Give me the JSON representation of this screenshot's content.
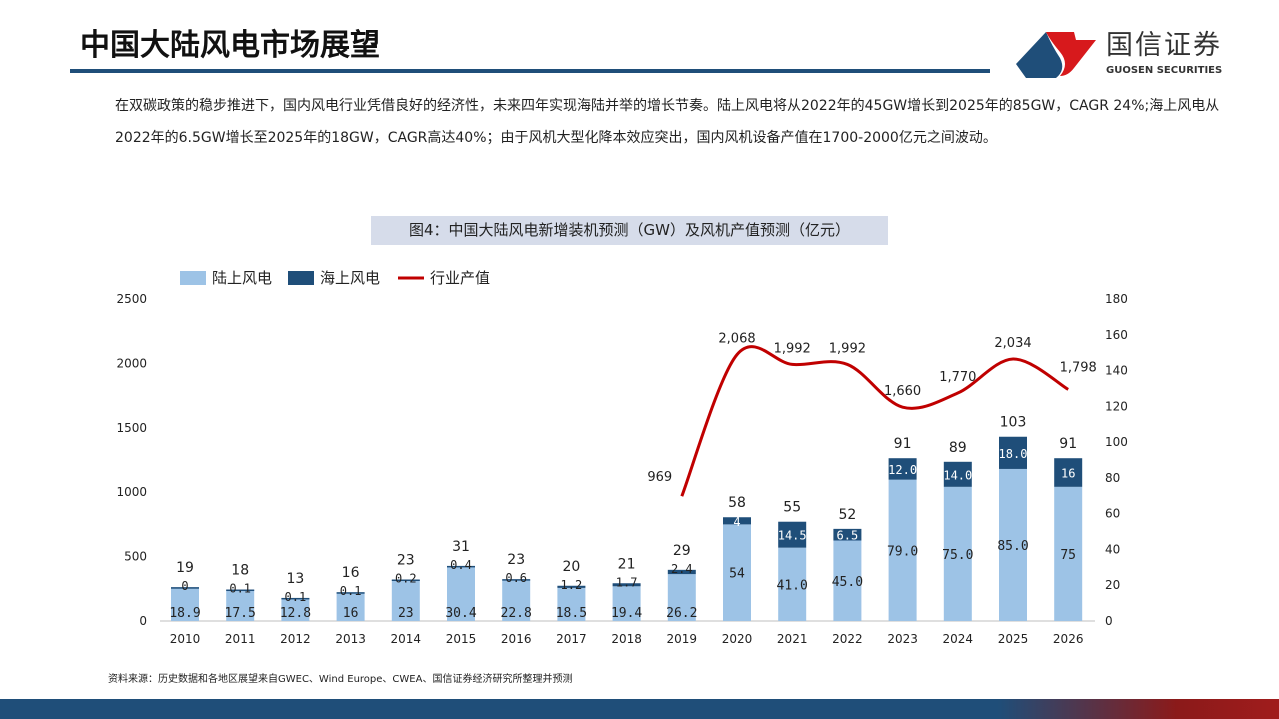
{
  "header": {
    "title": "中国大陆风电市场展望",
    "logo_cn": "国信证券",
    "logo_en": "GUOSEN SECURITIES"
  },
  "intro": "在双碳政策的稳步推进下，国内风电行业凭借良好的经济性，未来四年实现海陆并举的增长节奏。陆上风电将从2022年的45GW增长到2025年的85GW，CAGR 24%;海上风电从2022年的6.5GW增长至2025年的18GW，CAGR高达40%；由于风机大型化降本效应突出，国内风机设备产值在1700-2000亿元之间波动。",
  "source": "资料来源：历史数据和各地区展望来自GWEC、Wind Europe、CWEA、国信证券经济研究所整理并预测",
  "chart_data": {
    "type": "bar+line",
    "title": "图4：中国大陆风电新增装机预测（GW）及风机产值预测（亿元）",
    "categories": [
      "2010",
      "2011",
      "2012",
      "2013",
      "2014",
      "2015",
      "2016",
      "2017",
      "2018",
      "2019",
      "2020",
      "2021",
      "2022",
      "2023",
      "2024",
      "2025",
      "2026"
    ],
    "series": [
      {
        "name": "陆上风电",
        "type": "stacked-bar",
        "axis": "right",
        "color": "#9dc3e6",
        "values": [
          18.9,
          17.5,
          12.8,
          16,
          23,
          30.4,
          22.8,
          18.5,
          19.4,
          26.2,
          54,
          41.0,
          45.0,
          79.0,
          75.0,
          85.0,
          75
        ],
        "labels": [
          "18.9",
          "17.5",
          "12.8",
          "16",
          "23",
          "30.4",
          "22.8",
          "18.5",
          "19.4",
          "26.2",
          "54",
          "41.0",
          "45.0",
          "79.0",
          "75.0",
          "85.0",
          "75"
        ]
      },
      {
        "name": "海上风电",
        "type": "stacked-bar",
        "axis": "right",
        "color": "#1f4e79",
        "values": [
          0,
          0.1,
          0.1,
          0.1,
          0.2,
          0.4,
          0.6,
          1.2,
          1.7,
          2.4,
          4,
          14.5,
          6.5,
          12.0,
          14.0,
          18.0,
          16
        ],
        "labels": [
          "0",
          "0.1",
          "0.1",
          "0.1",
          "0.2",
          "0.4",
          "0.6",
          "1.2",
          "1.7",
          "2.4",
          "4",
          "14.5",
          "6.5",
          "12.0",
          "14.0",
          "18.0",
          "16"
        ]
      },
      {
        "name": "行业产值",
        "type": "line",
        "axis": "left",
        "color": "#c00000",
        "values": [
          null,
          null,
          null,
          null,
          null,
          null,
          null,
          null,
          null,
          969,
          2068,
          1992,
          1992,
          1660,
          1770,
          2034,
          1798
        ],
        "labels": [
          "",
          "",
          "",
          "",
          "",
          "",
          "",
          "",
          "",
          "969",
          "2,068",
          "1,992",
          "1,992",
          "1,660",
          "1,770",
          "2,034",
          "1,798"
        ]
      }
    ],
    "totals": [
      "19",
      "18",
      "13",
      "16",
      "23",
      "31",
      "23",
      "20",
      "21",
      "29",
      "58",
      "55",
      "52",
      "91",
      "89",
      "103",
      "91"
    ],
    "left_axis": {
      "range": [
        0,
        2500
      ],
      "ticks": [
        "0",
        "500",
        "1000",
        "1500",
        "2000",
        "2500"
      ]
    },
    "right_axis": {
      "range": [
        0,
        180
      ],
      "ticks": [
        "0",
        "20",
        "40",
        "60",
        "80",
        "100",
        "120",
        "140",
        "160",
        "180"
      ]
    },
    "legend": "top-left",
    "grid": false
  }
}
